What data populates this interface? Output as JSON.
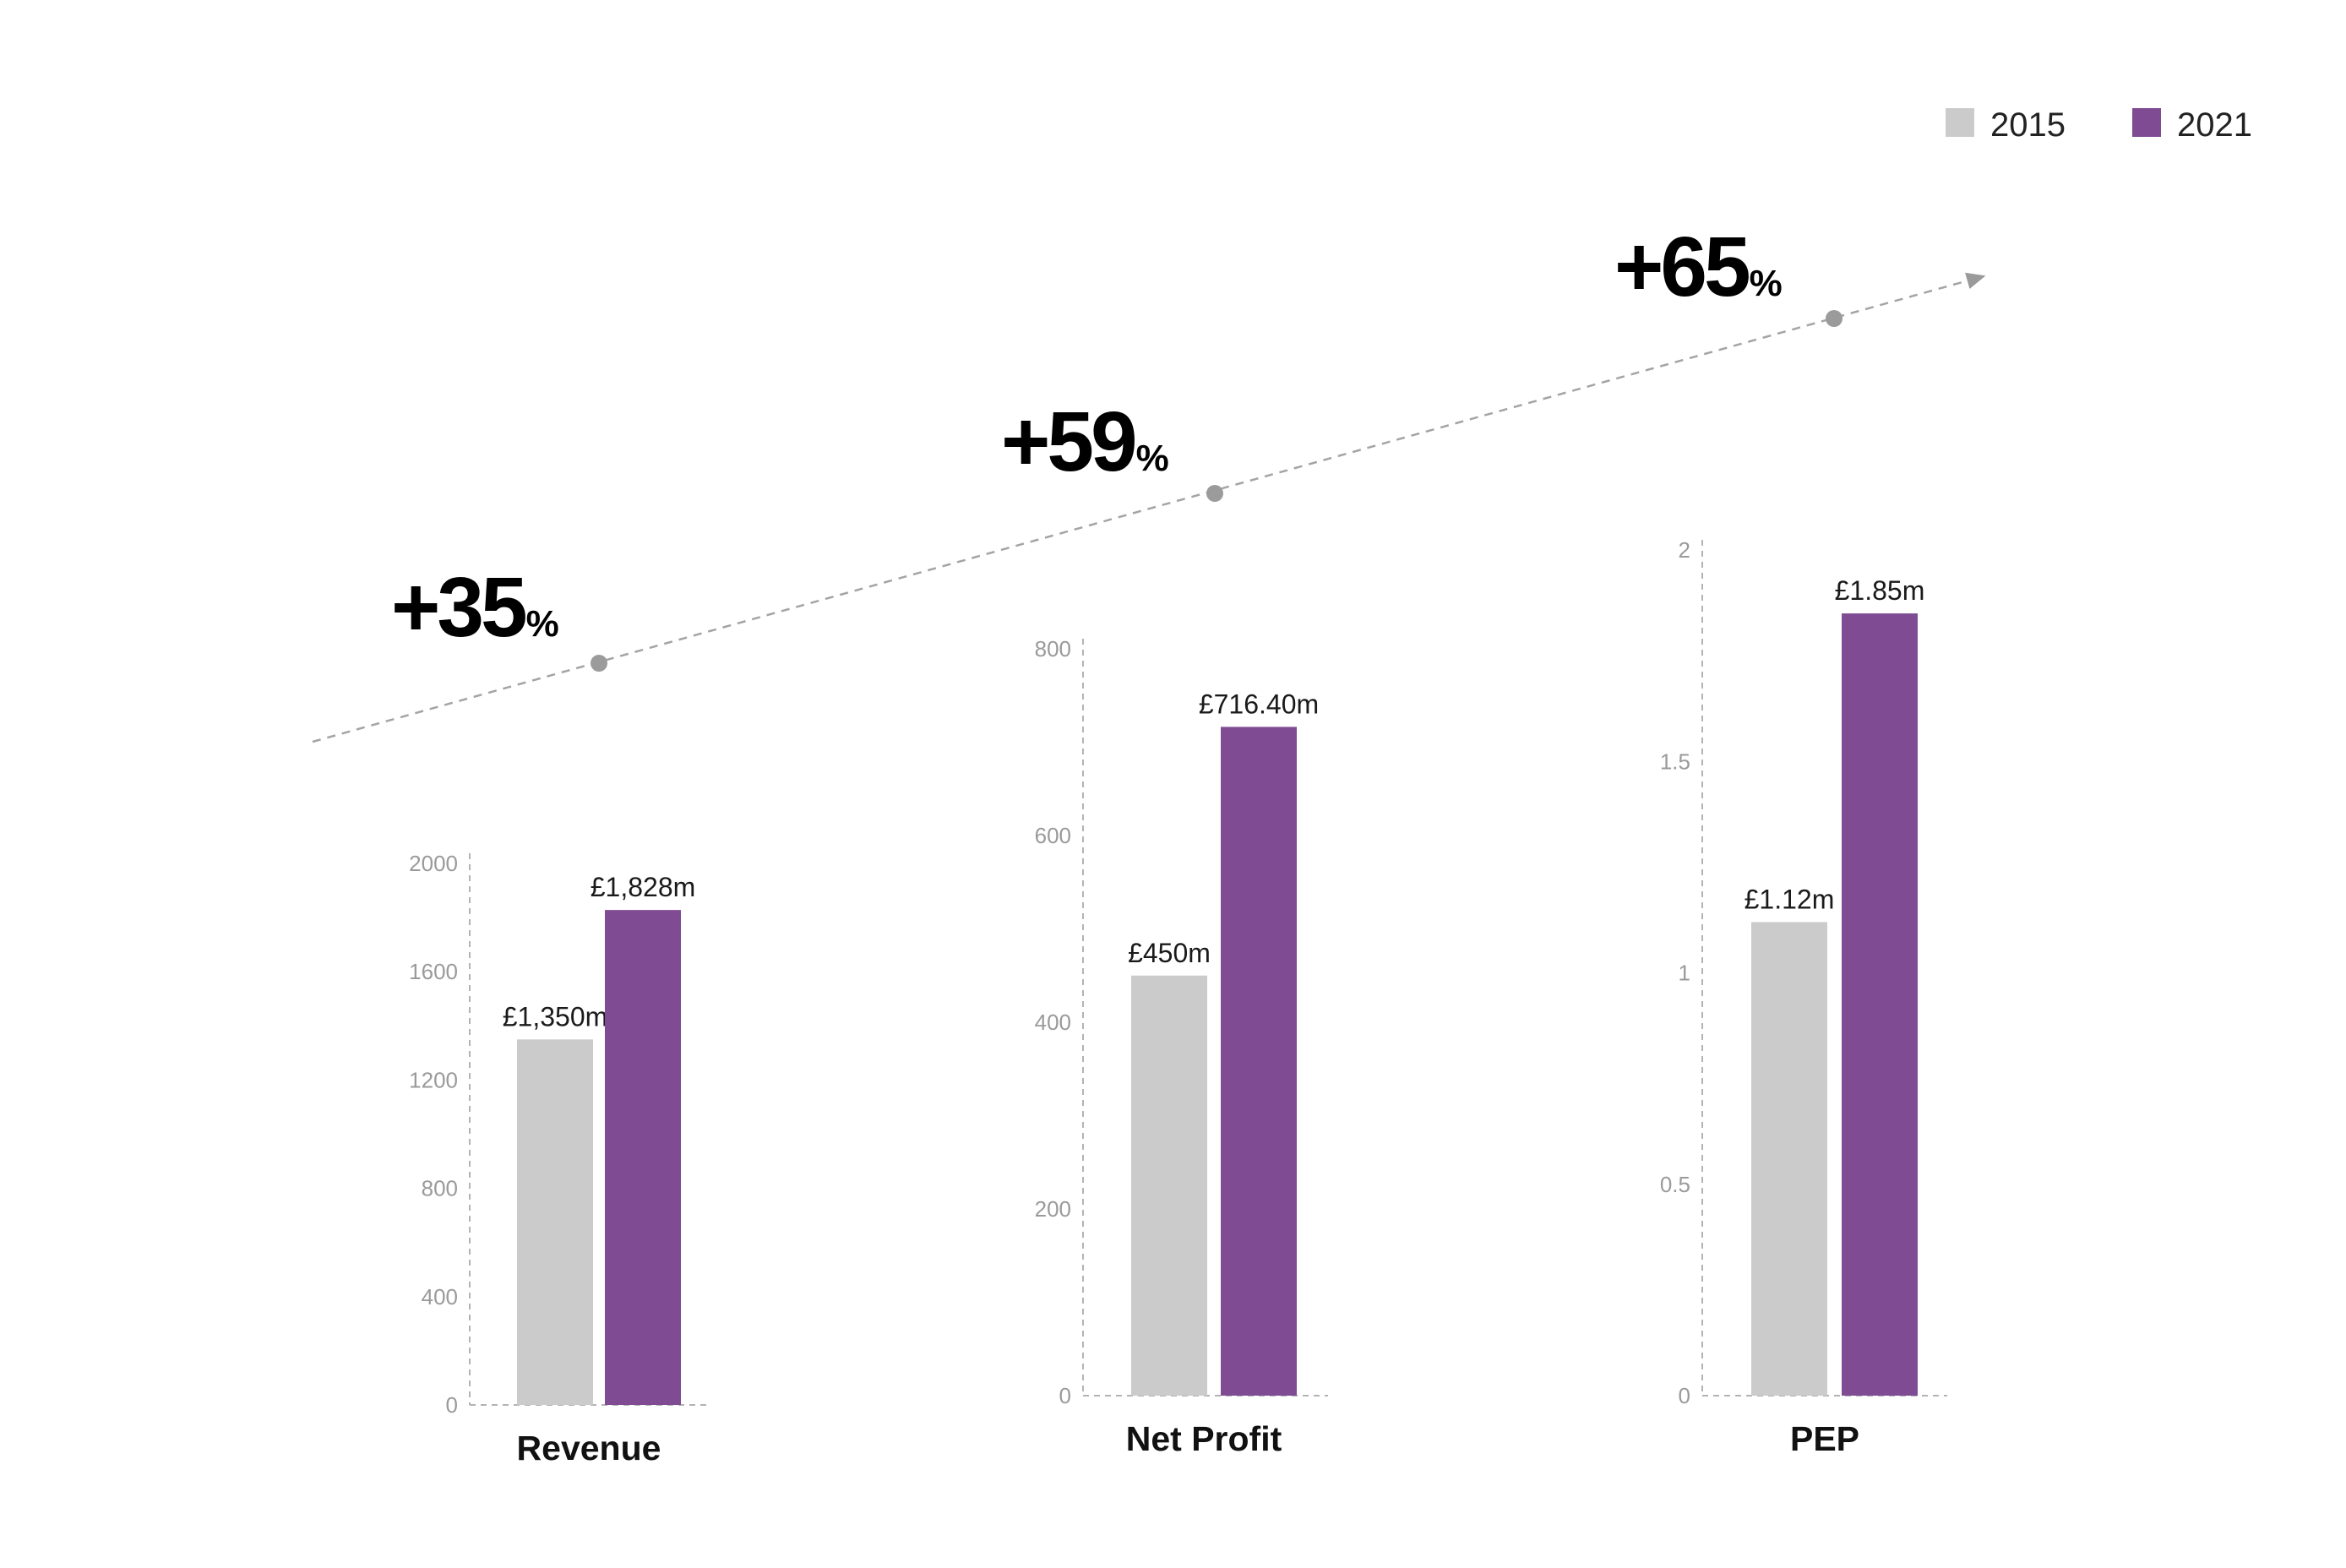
{
  "legend": [
    {
      "label": "2015",
      "color": "#cbcbcc"
    },
    {
      "label": "2021",
      "color": "#7f4c93"
    }
  ],
  "growth": [
    {
      "value": "+35",
      "unit": "%"
    },
    {
      "value": "+59",
      "unit": "%"
    },
    {
      "value": "+65",
      "unit": "%"
    }
  ],
  "chart_data": [
    {
      "type": "bar",
      "xlabel": "Revenue",
      "ylim": [
        0,
        2000
      ],
      "yticks": [
        0,
        400,
        800,
        1200,
        1600,
        2000
      ],
      "series": [
        {
          "name": "2015",
          "values": [
            1350
          ],
          "label": "£1,350m"
        },
        {
          "name": "2021",
          "values": [
            1828
          ],
          "label": "£1,828m"
        }
      ]
    },
    {
      "type": "bar",
      "xlabel": "Net Profit",
      "ylim": [
        0,
        800
      ],
      "yticks": [
        0,
        200,
        400,
        600,
        800
      ],
      "series": [
        {
          "name": "2015",
          "values": [
            450
          ],
          "label": "£450m"
        },
        {
          "name": "2021",
          "values": [
            716.4
          ],
          "label": "£716.40m"
        }
      ]
    },
    {
      "type": "bar",
      "xlabel": "PEP",
      "ylim": [
        0,
        2
      ],
      "yticks": [
        0,
        0.5,
        1,
        1.5,
        2
      ],
      "series": [
        {
          "name": "2015",
          "values": [
            1.12
          ],
          "label": "£1.12m"
        },
        {
          "name": "2021",
          "values": [
            1.85
          ],
          "label": "£1.85m"
        }
      ]
    }
  ]
}
